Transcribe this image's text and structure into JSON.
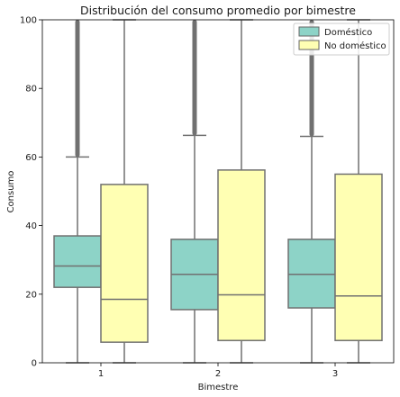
{
  "chart_data": {
    "type": "box",
    "title": "Distribución del consumo promedio por bimestre",
    "xlabel": "Bimestre",
    "ylabel": "Consumo",
    "categories": [
      "1",
      "2",
      "3"
    ],
    "ylim": [
      0,
      100
    ],
    "yticks": [
      0,
      20,
      40,
      60,
      80,
      100
    ],
    "grid": false,
    "legend_position": "top-right",
    "series": [
      {
        "name": "Doméstico",
        "color": "#8dd3c7",
        "boxes": [
          {
            "min": 0,
            "q1": 22,
            "median": 28.2,
            "q3": 37,
            "max": 60,
            "outliers_from": 60,
            "outliers_to": 100
          },
          {
            "min": 0,
            "q1": 15.5,
            "median": 25.8,
            "q3": 36,
            "max": 66.3,
            "outliers_from": 66.3,
            "outliers_to": 100
          },
          {
            "min": 0,
            "q1": 16,
            "median": 25.8,
            "q3": 36,
            "max": 66,
            "outliers_from": 66,
            "outliers_to": 100
          }
        ]
      },
      {
        "name": "No doméstico",
        "color": "#ffffb3",
        "boxes": [
          {
            "min": 0,
            "q1": 6,
            "median": 18.5,
            "q3": 52,
            "max": 100
          },
          {
            "min": 0,
            "q1": 6.5,
            "median": 19.8,
            "q3": 56.2,
            "max": 100
          },
          {
            "min": 0,
            "q1": 6.5,
            "median": 19.5,
            "q3": 55,
            "max": 100
          }
        ]
      }
    ]
  }
}
